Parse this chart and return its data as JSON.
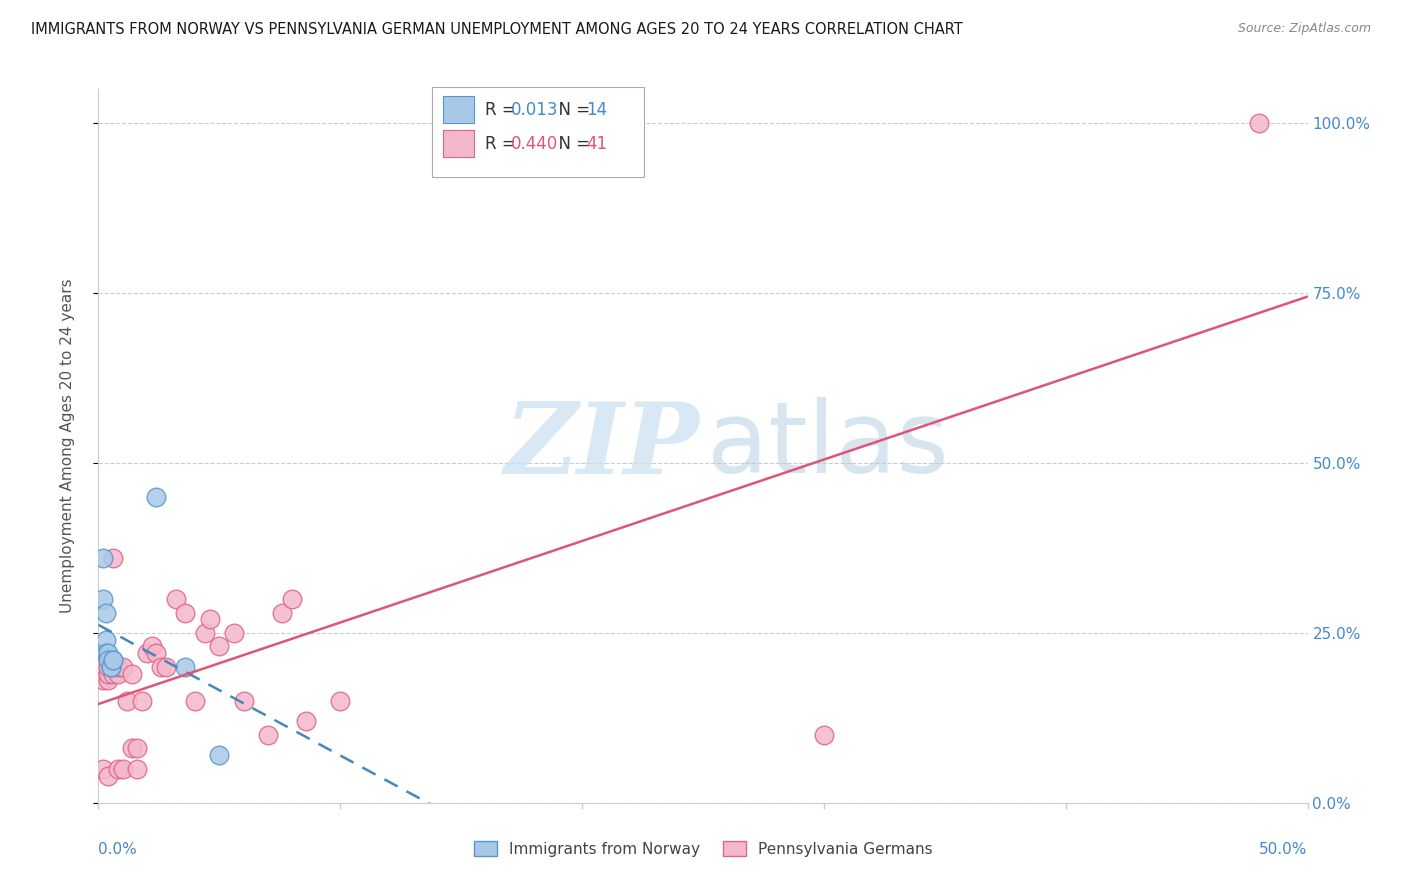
{
  "title": "IMMIGRANTS FROM NORWAY VS PENNSYLVANIA GERMAN UNEMPLOYMENT AMONG AGES 20 TO 24 YEARS CORRELATION CHART",
  "source": "Source: ZipAtlas.com",
  "ylabel": "Unemployment Among Ages 20 to 24 years",
  "legend1_label": "Immigrants from Norway",
  "legend2_label": "Pennsylvania Germans",
  "r1": "0.013",
  "n1": "14",
  "r2": "0.440",
  "n2": "41",
  "color_blue_fill": "#a8c8e8",
  "color_blue_edge": "#5599cc",
  "color_blue_line": "#4488bb",
  "color_pink_fill": "#f4b8cc",
  "color_pink_edge": "#dd6688",
  "color_pink_line": "#dd5577",
  "color_r_blue": "#4488cc",
  "color_r_pink": "#dd5577",
  "color_n_blue": "#4488cc",
  "color_n_pink": "#dd5577",
  "norway_x": [
    0.002,
    0.002,
    0.003,
    0.003,
    0.003,
    0.004,
    0.004,
    0.005,
    0.005,
    0.006,
    0.006,
    0.024,
    0.036,
    0.05
  ],
  "norway_y": [
    0.36,
    0.3,
    0.28,
    0.24,
    0.22,
    0.22,
    0.21,
    0.2,
    0.2,
    0.21,
    0.21,
    0.45,
    0.2,
    0.07
  ],
  "pagerman_x": [
    0.002,
    0.002,
    0.002,
    0.004,
    0.004,
    0.004,
    0.004,
    0.006,
    0.006,
    0.006,
    0.008,
    0.008,
    0.008,
    0.01,
    0.01,
    0.012,
    0.014,
    0.014,
    0.016,
    0.016,
    0.018,
    0.02,
    0.022,
    0.024,
    0.026,
    0.028,
    0.032,
    0.036,
    0.04,
    0.044,
    0.046,
    0.05,
    0.056,
    0.06,
    0.07,
    0.076,
    0.08,
    0.086,
    0.1,
    0.3,
    0.48
  ],
  "pagerman_y": [
    0.2,
    0.18,
    0.05,
    0.18,
    0.19,
    0.2,
    0.04,
    0.19,
    0.2,
    0.36,
    0.19,
    0.2,
    0.05,
    0.2,
    0.05,
    0.15,
    0.19,
    0.08,
    0.08,
    0.05,
    0.15,
    0.22,
    0.23,
    0.22,
    0.2,
    0.2,
    0.3,
    0.28,
    0.15,
    0.25,
    0.27,
    0.23,
    0.25,
    0.15,
    0.1,
    0.28,
    0.3,
    0.12,
    0.15,
    0.1,
    1.0
  ],
  "xlim": [
    0.0,
    0.5
  ],
  "ylim": [
    0.0,
    1.05
  ],
  "yticks": [
    0.0,
    0.25,
    0.5,
    0.75,
    1.0
  ],
  "ytick_labels_right": [
    "0.0%",
    "25.0%",
    "50.0%",
    "75.0%",
    "100.0%"
  ],
  "xtick_label_left": "0.0%",
  "xtick_label_right": "50.0%",
  "grid_color": "#cccccc",
  "background": "#ffffff",
  "watermark_zip_color": "#c8dff0",
  "watermark_atlas_color": "#b0cce0"
}
